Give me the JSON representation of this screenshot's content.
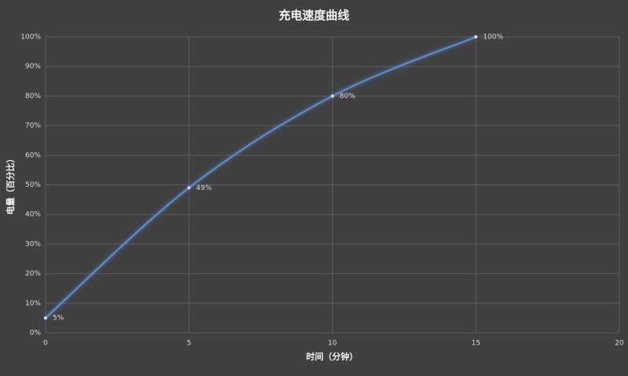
{
  "chart_data": {
    "type": "line",
    "title": "充电速度曲线",
    "x_label": "时间（分钟）",
    "y_label": "电量（百分比）",
    "x": [
      0,
      5,
      10,
      15
    ],
    "series": [
      {
        "color": "#5b8fd8",
        "values": [
          5,
          49,
          80,
          100
        ],
        "value_labels": [
          "5%",
          "49%",
          "80%",
          "100%"
        ]
      }
    ],
    "xlim": [
      0,
      20
    ],
    "xticks": [
      0,
      5,
      10,
      15,
      20
    ],
    "ylim": [
      0,
      100
    ],
    "yticks": [
      {
        "value": 0,
        "label": "0%"
      },
      {
        "value": 10,
        "label": "10%"
      },
      {
        "value": 20,
        "label": "20%"
      },
      {
        "value": 30,
        "label": "30%"
      },
      {
        "value": 40,
        "label": "40%"
      },
      {
        "value": 50,
        "label": "50%"
      },
      {
        "value": 60,
        "label": "60%"
      },
      {
        "value": 70,
        "label": "70%"
      },
      {
        "value": 80,
        "label": "80%"
      },
      {
        "value": 90,
        "label": "90%"
      },
      {
        "value": 100,
        "label": "100%"
      }
    ],
    "grid": true,
    "smooth": true
  }
}
